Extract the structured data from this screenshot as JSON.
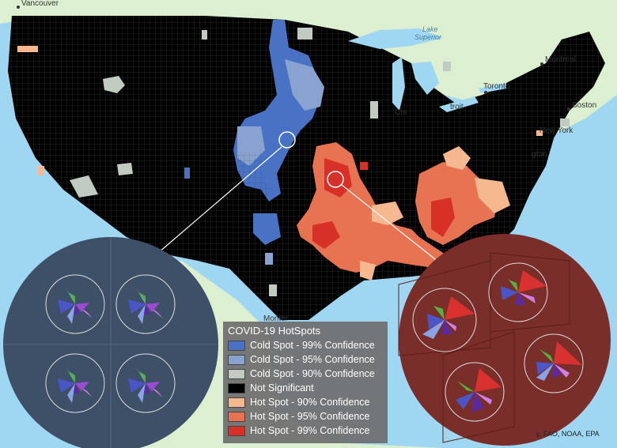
{
  "map": {
    "places": [
      {
        "name": "Vancouver"
      },
      {
        "name": "Montreal"
      },
      {
        "name": "Toronto"
      },
      {
        "name": "Boston"
      },
      {
        "name": "Chi"
      },
      {
        "name": "troit"
      },
      {
        "name": "New York"
      },
      {
        "name": "gton"
      },
      {
        "name": "Monter"
      }
    ],
    "water": [
      "Lake",
      "Superior"
    ],
    "attribution": "y, FAO, NOAA, EPA",
    "colors": {
      "ocean": "#9fd6f2",
      "land": "#dcefd0",
      "counties": "#000000",
      "cold_circle_bg": "#3d5068",
      "hot_circle_bg": "#7a2e2a"
    }
  },
  "legend": {
    "title": "COVID-19 HotSpots",
    "items": [
      {
        "label": "Cold Spot - 99% Confidence",
        "color": "#4a72c4"
      },
      {
        "label": "Cold Spot - 95% Confidence",
        "color": "#8aa2cf"
      },
      {
        "label": "Cold Spot - 90% Confidence",
        "color": "#c2cbc2"
      },
      {
        "label": "Not Significant",
        "color": "#000000"
      },
      {
        "label": "Hot Spot - 90% Confidence",
        "color": "#f6b88e"
      },
      {
        "label": "Hot Spot - 95% Confidence",
        "color": "#e87352"
      },
      {
        "label": "Hot Spot - 99% Confidence",
        "color": "#d73027"
      }
    ]
  }
}
